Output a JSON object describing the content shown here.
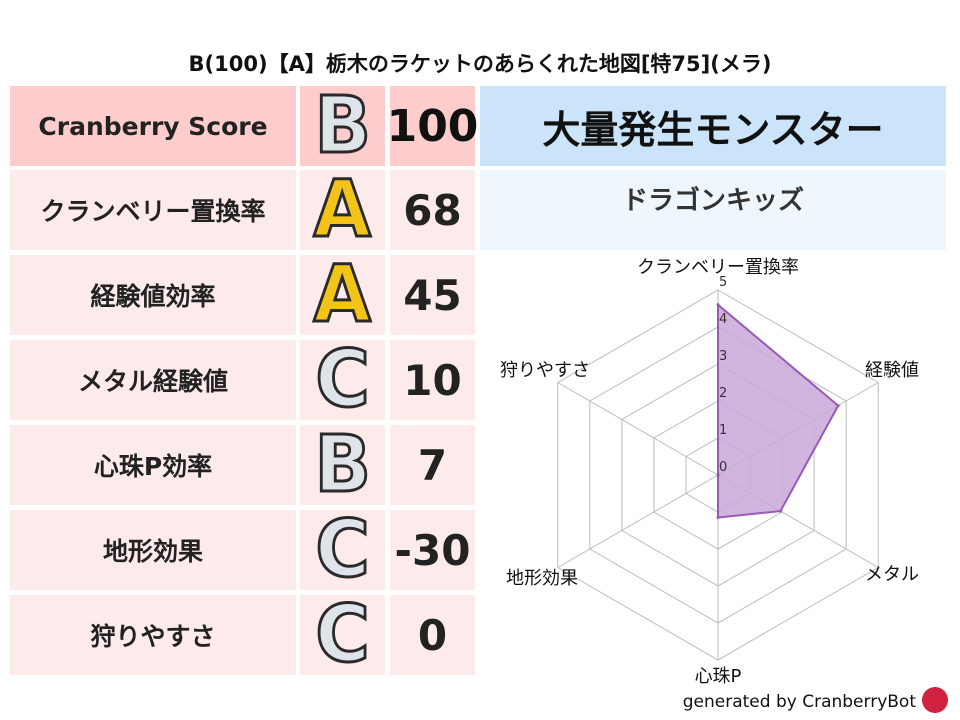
{
  "title": "B(100)【A】栃木のラケットのあらくれた地図[特75](メラ)",
  "score": {
    "label": "Cranberry Score",
    "grade": "B",
    "value": "100"
  },
  "rows": [
    {
      "label": "クランベリー置換率",
      "grade": "A",
      "value": "68"
    },
    {
      "label": "経験値効率",
      "grade": "A",
      "value": "45"
    },
    {
      "label": "メタル経験値",
      "grade": "C",
      "value": "10"
    },
    {
      "label": "心珠P効率",
      "grade": "B",
      "value": "7"
    },
    {
      "label": "地形効果",
      "grade": "C",
      "value": "-30"
    },
    {
      "label": "狩りやすさ",
      "grade": "C",
      "value": "0"
    }
  ],
  "event_title": "大量発生モンスター",
  "monster": "ドラゴンキッズ",
  "footer": "generated by CranberryBot",
  "colors": {
    "score_bg": "#fdcdcd",
    "row_bg": "#fdeaea",
    "event_bg": "#cce4fa",
    "monster_bg": "#eef6fe",
    "radar_fill": "#c9a8d9",
    "radar_line": "#9b59b6",
    "grade_A": "#f2c417",
    "grade_BC": "#dfe4ea"
  },
  "chart_data": {
    "type": "radar",
    "axes": [
      "クランベリー置換率",
      "経験値",
      "メタル",
      "心珠P",
      "地形効果",
      "狩りやすさ"
    ],
    "values": [
      4.6,
      3.75,
      1.95,
      1.15,
      0,
      0
    ],
    "range": [
      0,
      5
    ],
    "ticks": [
      "0",
      "1",
      "2",
      "3",
      "4",
      "5"
    ],
    "grid": true
  }
}
